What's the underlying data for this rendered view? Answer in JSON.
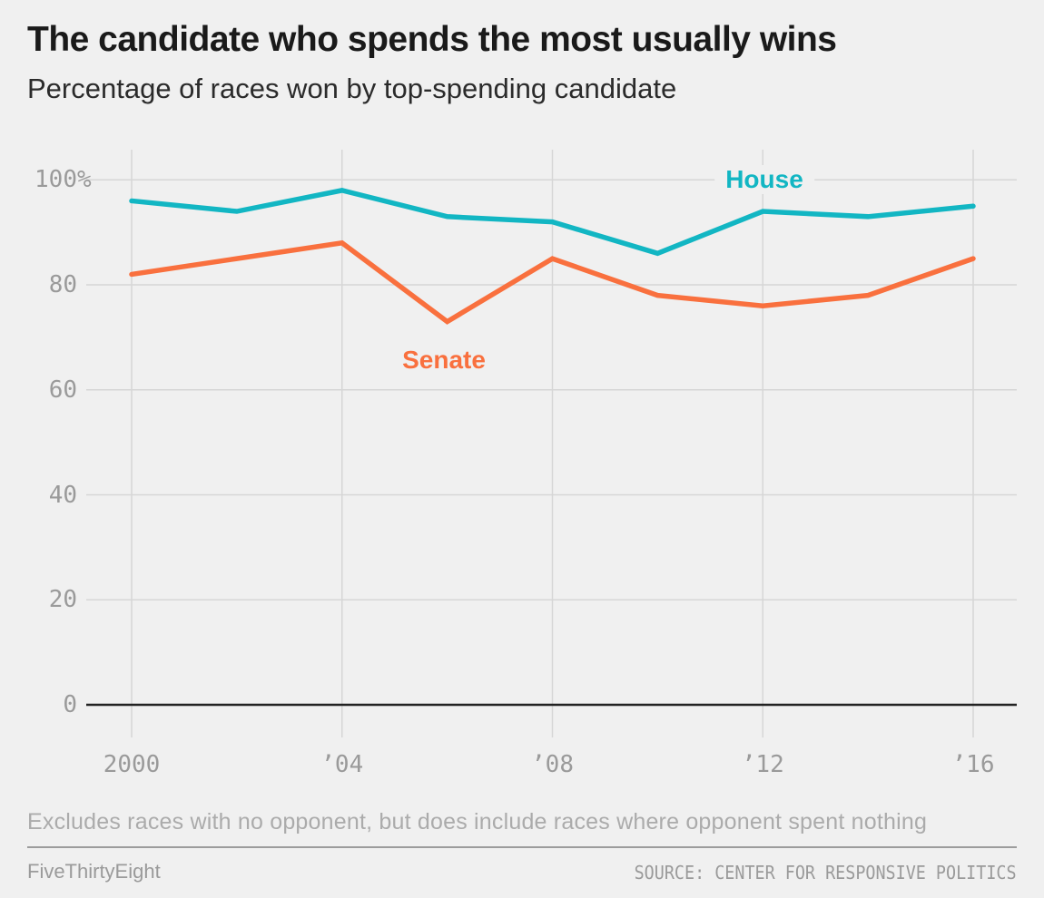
{
  "header": {
    "title": "The candidate who spends the most usually wins",
    "subtitle": "Percentage of races won by top-spending candidate"
  },
  "chart_data": {
    "type": "line",
    "title": "The candidate who spends the most usually wins",
    "subtitle": "Percentage of races won by top-spending candidate",
    "x": [
      2000,
      2002,
      2004,
      2006,
      2008,
      2010,
      2012,
      2014,
      2016
    ],
    "series": [
      {
        "name": "House",
        "color": "#12b6c3",
        "values": [
          96,
          94,
          98,
          93,
          92,
          86,
          94,
          93,
          95
        ]
      },
      {
        "name": "Senate",
        "color": "#f9703e",
        "values": [
          82,
          85,
          88,
          73,
          85,
          78,
          76,
          78,
          85
        ]
      }
    ],
    "ylim": [
      0,
      100
    ],
    "y_ticks": [
      {
        "label": "0",
        "suffix": ""
      },
      {
        "label": "20",
        "suffix": ""
      },
      {
        "label": "40",
        "suffix": ""
      },
      {
        "label": "60",
        "suffix": ""
      },
      {
        "label": "80",
        "suffix": ""
      },
      {
        "label": "100",
        "suffix": "%"
      }
    ],
    "x_ticks": [
      {
        "year": 2000,
        "label": "2000"
      },
      {
        "year": 2004,
        "label": "’04"
      },
      {
        "year": 2008,
        "label": "’08"
      },
      {
        "year": 2012,
        "label": "’12"
      },
      {
        "year": 2016,
        "label": "’16"
      }
    ],
    "grid": true,
    "legend": "inline-labels",
    "colors": {
      "grid": "#d6d6d6",
      "zero_axis": "#222222",
      "tick_text": "#9a9a9a",
      "background": "#f0f0f0"
    }
  },
  "footer": {
    "footnote": "Excludes races with no opponent, but does include races where opponent spent nothing",
    "credit": "FiveThirtyEight",
    "source": "SOURCE: CENTER FOR RESPONSIVE POLITICS"
  }
}
